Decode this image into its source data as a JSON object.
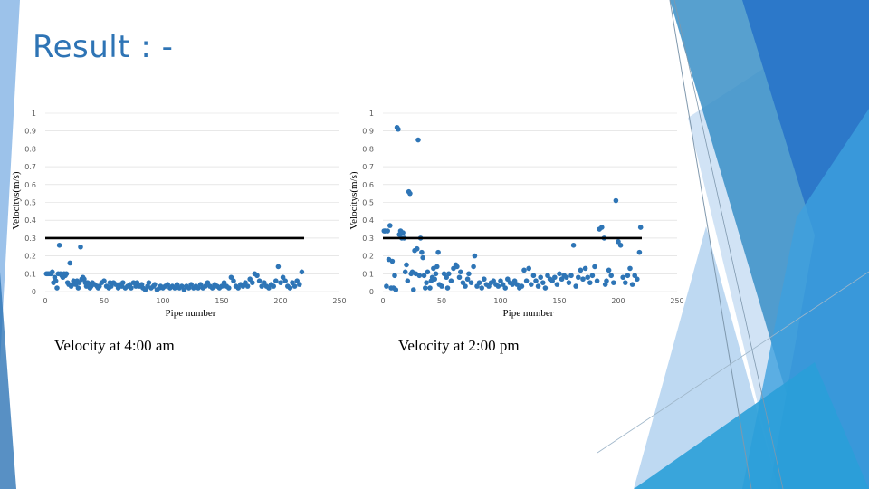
{
  "title": "Result : -",
  "captions": [
    "Velocity at 4:00 am",
    "Velocity at 2:00 pm"
  ],
  "colors": {
    "title": "#2e74b5",
    "points": "#2e75b6",
    "threshold": "#000000",
    "grid": "#d9d9d9"
  },
  "chart_data": [
    {
      "type": "scatter",
      "title": "",
      "xlabel": "Pipe number",
      "ylabel": "Velocitys(m/s)",
      "xlim": [
        0,
        250
      ],
      "ylim": [
        0,
        1
      ],
      "x_ticks": [
        "0",
        "50",
        "100",
        "150",
        "200",
        "250"
      ],
      "y_ticks": [
        "0",
        "0.1",
        "0.2",
        "0.3",
        "0.4",
        "0.5",
        "0.6",
        "0.7",
        "0.8",
        "0.9",
        "1"
      ],
      "grid": true,
      "threshold": 0.3,
      "series": [
        {
          "points": [
            [
              1,
              0.1
            ],
            [
              2,
              0.1
            ],
            [
              3,
              0.1
            ],
            [
              4,
              0.1
            ],
            [
              5,
              0.1
            ],
            [
              6,
              0.11
            ],
            [
              7,
              0.05
            ],
            [
              8,
              0.08
            ],
            [
              9,
              0.06
            ],
            [
              10,
              0.02
            ],
            [
              11,
              0.1
            ],
            [
              12,
              0.26
            ],
            [
              13,
              0.1
            ],
            [
              14,
              0.09
            ],
            [
              15,
              0.08
            ],
            [
              16,
              0.1
            ],
            [
              17,
              0.09
            ],
            [
              18,
              0.1
            ],
            [
              19,
              0.05
            ],
            [
              20,
              0.04
            ],
            [
              21,
              0.16
            ],
            [
              22,
              0.03
            ],
            [
              23,
              0.04
            ],
            [
              24,
              0.06
            ],
            [
              25,
              0.05
            ],
            [
              26,
              0.04
            ],
            [
              27,
              0.06
            ],
            [
              28,
              0.02
            ],
            [
              29,
              0.05
            ],
            [
              30,
              0.25
            ],
            [
              31,
              0.07
            ],
            [
              32,
              0.08
            ],
            [
              33,
              0.07
            ],
            [
              34,
              0.05
            ],
            [
              35,
              0.03
            ],
            [
              36,
              0.05
            ],
            [
              37,
              0.04
            ],
            [
              38,
              0.02
            ],
            [
              39,
              0.03
            ],
            [
              40,
              0.05
            ],
            [
              42,
              0.04
            ],
            [
              44,
              0.03
            ],
            [
              45,
              0.02
            ],
            [
              46,
              0.03
            ],
            [
              48,
              0.05
            ],
            [
              50,
              0.06
            ],
            [
              52,
              0.03
            ],
            [
              54,
              0.02
            ],
            [
              55,
              0.05
            ],
            [
              56,
              0.03
            ],
            [
              58,
              0.05
            ],
            [
              60,
              0.04
            ],
            [
              62,
              0.02
            ],
            [
              63,
              0.04
            ],
            [
              65,
              0.03
            ],
            [
              66,
              0.05
            ],
            [
              68,
              0.02
            ],
            [
              70,
              0.03
            ],
            [
              72,
              0.04
            ],
            [
              73,
              0.02
            ],
            [
              75,
              0.05
            ],
            [
              77,
              0.03
            ],
            [
              78,
              0.05
            ],
            [
              80,
              0.03
            ],
            [
              82,
              0.04
            ],
            [
              83,
              0.02
            ],
            [
              85,
              0.01
            ],
            [
              87,
              0.03
            ],
            [
              88,
              0.05
            ],
            [
              90,
              0.02
            ],
            [
              92,
              0.03
            ],
            [
              93,
              0.04
            ],
            [
              95,
              0.01
            ],
            [
              97,
              0.02
            ],
            [
              98,
              0.03
            ],
            [
              100,
              0.02
            ],
            [
              102,
              0.03
            ],
            [
              104,
              0.04
            ],
            [
              106,
              0.02
            ],
            [
              108,
              0.03
            ],
            [
              110,
              0.02
            ],
            [
              112,
              0.04
            ],
            [
              114,
              0.02
            ],
            [
              116,
              0.03
            ],
            [
              118,
              0.01
            ],
            [
              120,
              0.03
            ],
            [
              122,
              0.02
            ],
            [
              124,
              0.04
            ],
            [
              126,
              0.02
            ],
            [
              128,
              0.03
            ],
            [
              130,
              0.02
            ],
            [
              132,
              0.04
            ],
            [
              134,
              0.02
            ],
            [
              136,
              0.03
            ],
            [
              138,
              0.05
            ],
            [
              140,
              0.03
            ],
            [
              142,
              0.02
            ],
            [
              144,
              0.04
            ],
            [
              146,
              0.03
            ],
            [
              148,
              0.02
            ],
            [
              150,
              0.03
            ],
            [
              152,
              0.05
            ],
            [
              154,
              0.03
            ],
            [
              156,
              0.02
            ],
            [
              158,
              0.08
            ],
            [
              160,
              0.06
            ],
            [
              162,
              0.03
            ],
            [
              164,
              0.02
            ],
            [
              166,
              0.04
            ],
            [
              168,
              0.03
            ],
            [
              170,
              0.05
            ],
            [
              172,
              0.03
            ],
            [
              174,
              0.07
            ],
            [
              176,
              0.05
            ],
            [
              178,
              0.1
            ],
            [
              180,
              0.09
            ],
            [
              182,
              0.06
            ],
            [
              184,
              0.03
            ],
            [
              186,
              0.05
            ],
            [
              188,
              0.03
            ],
            [
              190,
              0.02
            ],
            [
              192,
              0.04
            ],
            [
              194,
              0.03
            ],
            [
              196,
              0.06
            ],
            [
              198,
              0.14
            ],
            [
              200,
              0.05
            ],
            [
              202,
              0.08
            ],
            [
              204,
              0.06
            ],
            [
              206,
              0.03
            ],
            [
              208,
              0.02
            ],
            [
              210,
              0.05
            ],
            [
              212,
              0.03
            ],
            [
              214,
              0.06
            ],
            [
              216,
              0.04
            ],
            [
              218,
              0.11
            ]
          ]
        }
      ]
    },
    {
      "type": "scatter",
      "title": "",
      "xlabel": "Pipe number",
      "ylabel": "Velocitys(m/s)",
      "xlim": [
        0,
        250
      ],
      "ylim": [
        0,
        1
      ],
      "x_ticks": [
        "0",
        "50",
        "100",
        "150",
        "200",
        "250"
      ],
      "y_ticks": [
        "0",
        "0.1",
        "0.2",
        "0.3",
        "0.4",
        "0.5",
        "0.6",
        "0.7",
        "0.8",
        "0.9",
        "1"
      ],
      "grid": true,
      "threshold": 0.3,
      "series": [
        {
          "points": [
            [
              1,
              0.34
            ],
            [
              2,
              0.34
            ],
            [
              3,
              0.03
            ],
            [
              4,
              0.34
            ],
            [
              5,
              0.18
            ],
            [
              6,
              0.37
            ],
            [
              7,
              0.02
            ],
            [
              8,
              0.17
            ],
            [
              9,
              0.02
            ],
            [
              10,
              0.09
            ],
            [
              11,
              0.01
            ],
            [
              12,
              0.92
            ],
            [
              13,
              0.91
            ],
            [
              14,
              0.32
            ],
            [
              15,
              0.34
            ],
            [
              16,
              0.3
            ],
            [
              17,
              0.33
            ],
            [
              18,
              0.3
            ],
            [
              19,
              0.11
            ],
            [
              20,
              0.15
            ],
            [
              21,
              0.06
            ],
            [
              22,
              0.56
            ],
            [
              23,
              0.55
            ],
            [
              24,
              0.1
            ],
            [
              25,
              0.11
            ],
            [
              26,
              0.01
            ],
            [
              27,
              0.23
            ],
            [
              28,
              0.1
            ],
            [
              29,
              0.24
            ],
            [
              30,
              0.85
            ],
            [
              31,
              0.09
            ],
            [
              32,
              0.3
            ],
            [
              33,
              0.22
            ],
            [
              34,
              0.19
            ],
            [
              35,
              0.09
            ],
            [
              36,
              0.02
            ],
            [
              37,
              0.05
            ],
            [
              38,
              0.11
            ],
            [
              40,
              0.02
            ],
            [
              41,
              0.06
            ],
            [
              42,
              0.08
            ],
            [
              43,
              0.13
            ],
            [
              44,
              0.07
            ],
            [
              45,
              0.1
            ],
            [
              46,
              0.14
            ],
            [
              47,
              0.22
            ],
            [
              48,
              0.04
            ],
            [
              50,
              0.03
            ],
            [
              52,
              0.1
            ],
            [
              54,
              0.08
            ],
            [
              55,
              0.02
            ],
            [
              56,
              0.1
            ],
            [
              58,
              0.06
            ],
            [
              60,
              0.13
            ],
            [
              62,
              0.15
            ],
            [
              63,
              0.14
            ],
            [
              65,
              0.08
            ],
            [
              66,
              0.11
            ],
            [
              68,
              0.05
            ],
            [
              70,
              0.03
            ],
            [
              72,
              0.07
            ],
            [
              73,
              0.1
            ],
            [
              75,
              0.05
            ],
            [
              77,
              0.14
            ],
            [
              78,
              0.2
            ],
            [
              80,
              0.03
            ],
            [
              82,
              0.05
            ],
            [
              84,
              0.02
            ],
            [
              86,
              0.07
            ],
            [
              88,
              0.04
            ],
            [
              90,
              0.03
            ],
            [
              92,
              0.05
            ],
            [
              94,
              0.06
            ],
            [
              96,
              0.04
            ],
            [
              98,
              0.03
            ],
            [
              100,
              0.06
            ],
            [
              102,
              0.04
            ],
            [
              104,
              0.02
            ],
            [
              106,
              0.07
            ],
            [
              108,
              0.05
            ],
            [
              110,
              0.04
            ],
            [
              112,
              0.06
            ],
            [
              114,
              0.04
            ],
            [
              116,
              0.02
            ],
            [
              118,
              0.03
            ],
            [
              120,
              0.12
            ],
            [
              122,
              0.06
            ],
            [
              124,
              0.13
            ],
            [
              126,
              0.04
            ],
            [
              128,
              0.09
            ],
            [
              130,
              0.06
            ],
            [
              132,
              0.03
            ],
            [
              134,
              0.08
            ],
            [
              136,
              0.05
            ],
            [
              138,
              0.02
            ],
            [
              140,
              0.09
            ],
            [
              142,
              0.07
            ],
            [
              144,
              0.06
            ],
            [
              146,
              0.08
            ],
            [
              148,
              0.04
            ],
            [
              150,
              0.1
            ],
            [
              152,
              0.07
            ],
            [
              154,
              0.09
            ],
            [
              156,
              0.08
            ],
            [
              158,
              0.05
            ],
            [
              160,
              0.09
            ],
            [
              162,
              0.26
            ],
            [
              164,
              0.03
            ],
            [
              166,
              0.08
            ],
            [
              168,
              0.12
            ],
            [
              170,
              0.07
            ],
            [
              172,
              0.13
            ],
            [
              174,
              0.08
            ],
            [
              176,
              0.05
            ],
            [
              178,
              0.09
            ],
            [
              180,
              0.14
            ],
            [
              182,
              0.06
            ],
            [
              184,
              0.35
            ],
            [
              186,
              0.36
            ],
            [
              188,
              0.3
            ],
            [
              189,
              0.04
            ],
            [
              190,
              0.06
            ],
            [
              192,
              0.12
            ],
            [
              194,
              0.09
            ],
            [
              196,
              0.05
            ],
            [
              198,
              0.51
            ],
            [
              200,
              0.28
            ],
            [
              202,
              0.26
            ],
            [
              204,
              0.08
            ],
            [
              206,
              0.05
            ],
            [
              208,
              0.09
            ],
            [
              210,
              0.13
            ],
            [
              212,
              0.04
            ],
            [
              214,
              0.09
            ],
            [
              216,
              0.07
            ],
            [
              218,
              0.22
            ],
            [
              219,
              0.36
            ]
          ]
        }
      ]
    }
  ]
}
